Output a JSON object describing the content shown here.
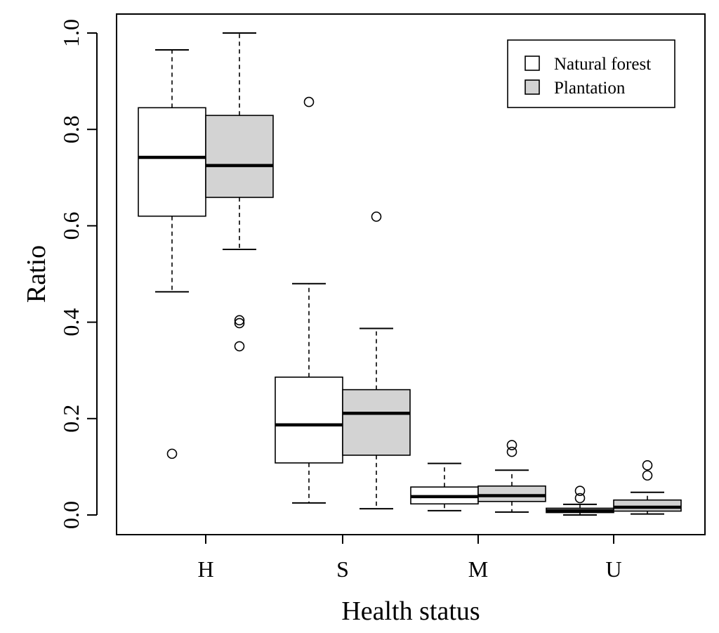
{
  "chart_data": {
    "type": "boxplot",
    "title": "",
    "xlabel": "Health status",
    "ylabel": "Ratio",
    "ylim": [
      -0.04,
      1.04
    ],
    "yticks": [
      "0.0",
      "0.2",
      "0.4",
      "0.6",
      "0.8",
      "1.0"
    ],
    "categories": [
      "H",
      "S",
      "M",
      "U"
    ],
    "legend": {
      "position": "top-right",
      "entries": [
        {
          "label": "Natural forest",
          "color": "#ffffff"
        },
        {
          "label": "Plantation",
          "color": "#d3d3d3"
        }
      ]
    },
    "series": [
      {
        "name": "Natural forest",
        "color": "#ffffff",
        "boxes": [
          {
            "category": "H",
            "whisker_low": 0.463,
            "q1": 0.62,
            "median": 0.742,
            "q3": 0.845,
            "whisker_high": 0.965,
            "outliers": [
              0.127
            ]
          },
          {
            "category": "S",
            "whisker_low": 0.025,
            "q1": 0.108,
            "median": 0.187,
            "q3": 0.286,
            "whisker_high": 0.48,
            "outliers": [
              0.857
            ]
          },
          {
            "category": "M",
            "whisker_low": 0.009,
            "q1": 0.023,
            "median": 0.038,
            "q3": 0.058,
            "whisker_high": 0.107,
            "outliers": []
          },
          {
            "category": "U",
            "whisker_low": 0.0,
            "q1": 0.005,
            "median": 0.009,
            "q3": 0.014,
            "whisker_high": 0.022,
            "outliers": [
              0.035,
              0.05
            ]
          }
        ]
      },
      {
        "name": "Plantation",
        "color": "#d3d3d3",
        "boxes": [
          {
            "category": "H",
            "whisker_low": 0.551,
            "q1": 0.659,
            "median": 0.725,
            "q3": 0.829,
            "whisker_high": 1.0,
            "outliers": [
              0.35,
              0.398,
              0.404
            ]
          },
          {
            "category": "S",
            "whisker_low": 0.013,
            "q1": 0.124,
            "median": 0.211,
            "q3": 0.26,
            "whisker_high": 0.387,
            "outliers": [
              0.619
            ]
          },
          {
            "category": "M",
            "whisker_low": 0.006,
            "q1": 0.028,
            "median": 0.04,
            "q3": 0.06,
            "whisker_high": 0.093,
            "outliers": [
              0.131,
              0.145
            ]
          },
          {
            "category": "U",
            "whisker_low": 0.002,
            "q1": 0.008,
            "median": 0.016,
            "q3": 0.031,
            "whisker_high": 0.047,
            "outliers": [
              0.082,
              0.103
            ]
          }
        ]
      }
    ]
  }
}
